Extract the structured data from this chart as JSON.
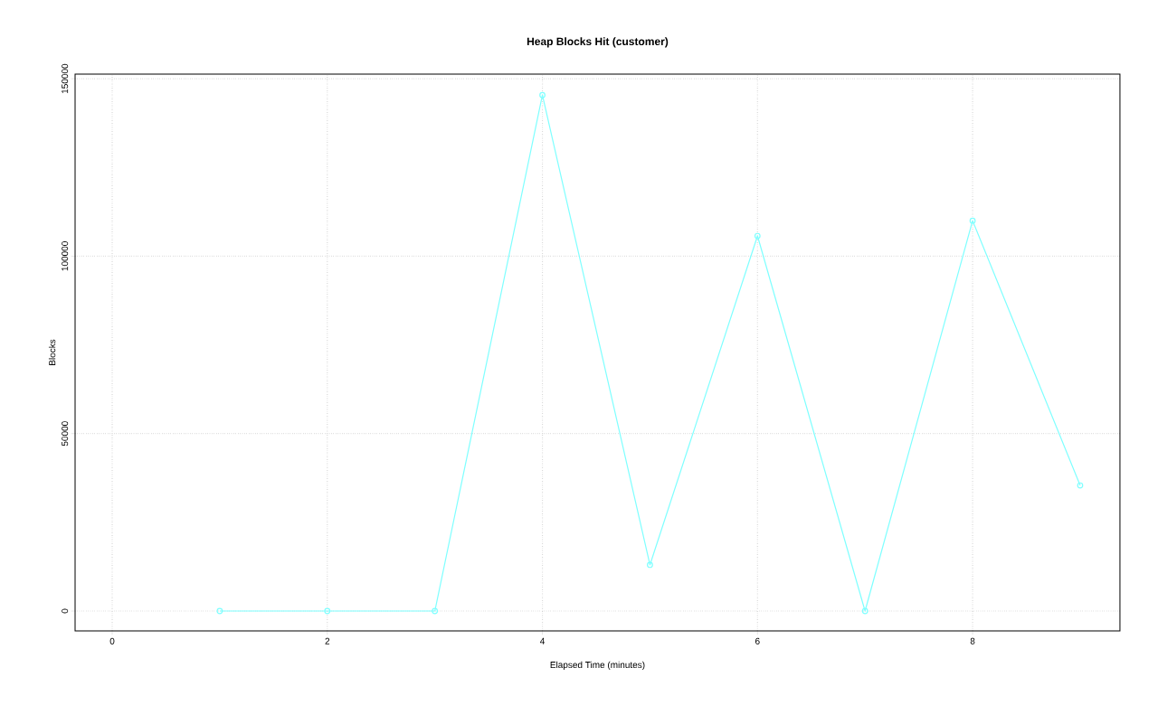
{
  "chart_data": {
    "type": "line",
    "title": "Heap Blocks Hit (customer)",
    "xlabel": "Elapsed Time (minutes)",
    "ylabel": "Blocks",
    "x": [
      1,
      2,
      3,
      4,
      5,
      6,
      7,
      8,
      9
    ],
    "series": [
      {
        "color": "#7fffff",
        "values": [
          0,
          0,
          0,
          145400,
          13000,
          105700,
          0,
          110000,
          35400
        ]
      }
    ],
    "xlim": [
      -0.345,
      9.37
    ],
    "ylim": [
      -5600,
      151300
    ],
    "xticks": [
      0,
      2,
      4,
      6,
      8
    ],
    "yticks": [
      0,
      50000,
      100000,
      150000
    ],
    "grid": true,
    "marker": "circle",
    "line_style": "solid"
  }
}
